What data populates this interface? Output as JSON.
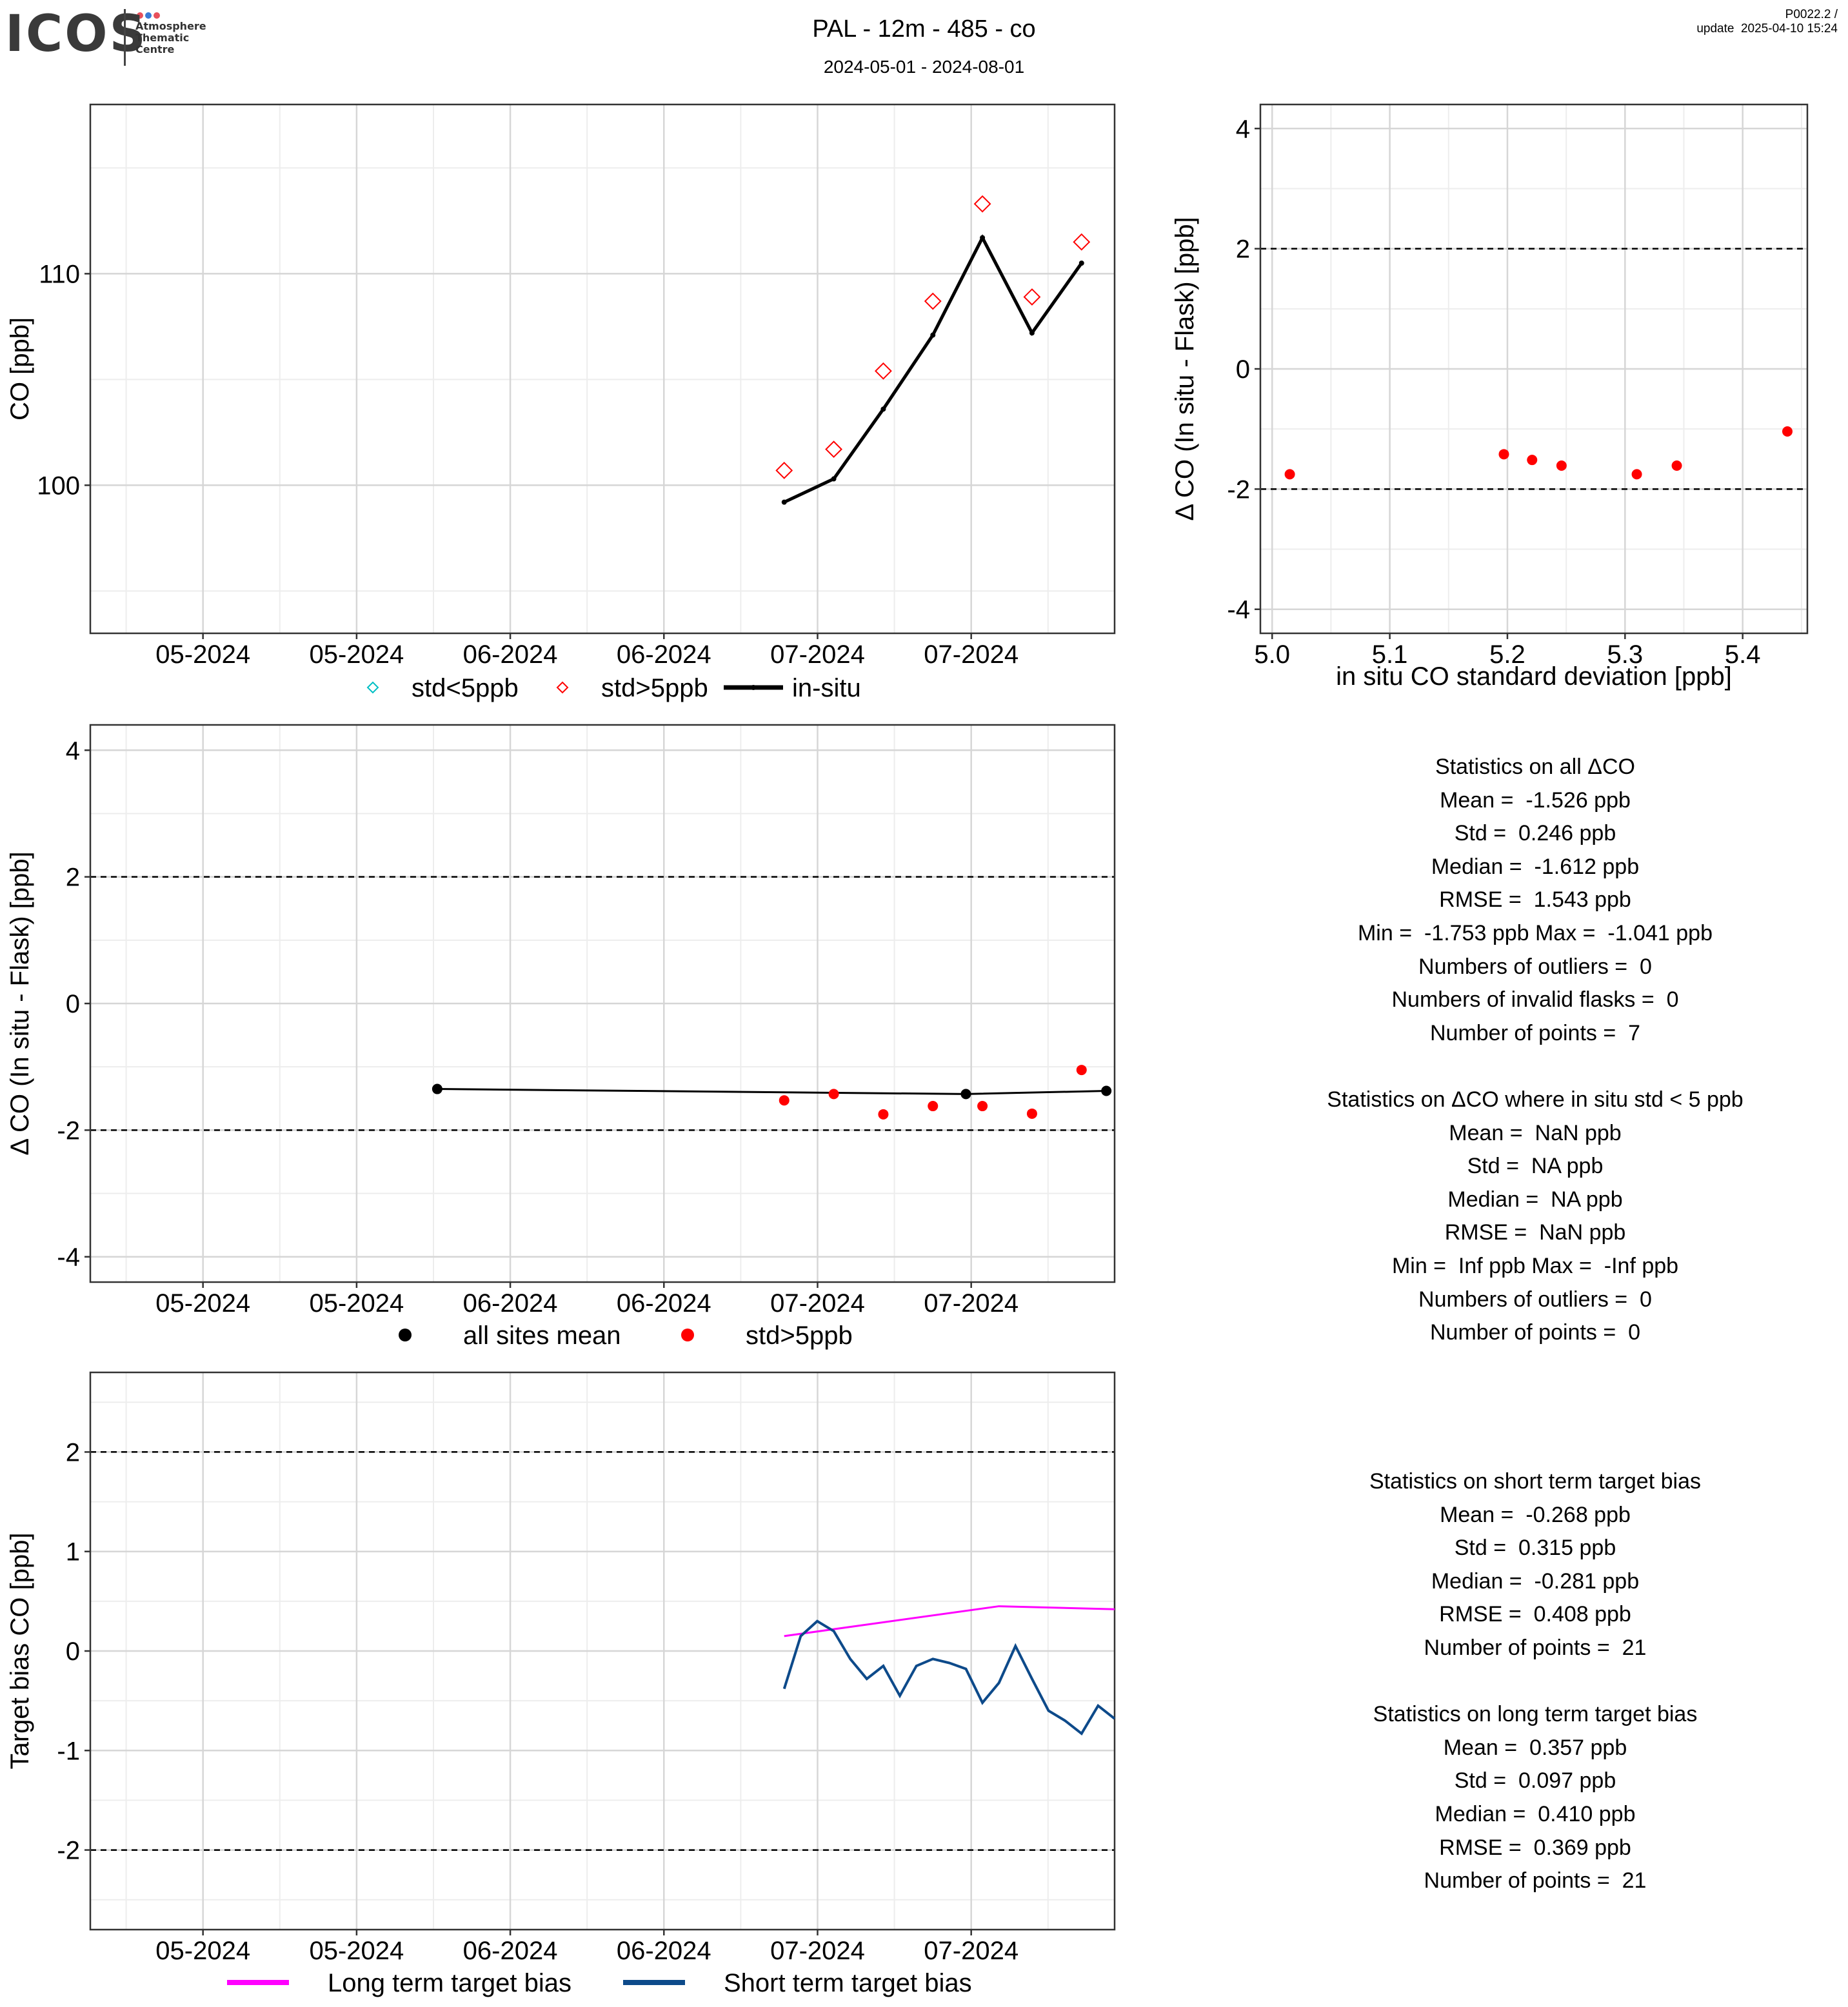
{
  "header": {
    "logo_text": "ICOS",
    "logo_subtitle": [
      "Atmosphere",
      "Thematic",
      "Centre"
    ],
    "title": "PAL - 12m - 485 - co",
    "subtitle": "2024-05-01 - 2024-08-01",
    "version_line1": "P0022.2 /",
    "version_line2": "update  2025-04-10 15:24"
  },
  "colors": {
    "insitu": "#000000",
    "std_low": "#00bfc4",
    "std_high": "#ff0000",
    "long_term": "#ff00ff",
    "short_term": "#0d4a8a",
    "logo_dot1": "#e8505b",
    "logo_dot2": "#3a7bd5",
    "logo_dot3": "#e8505b"
  },
  "chart_data": [
    {
      "type": "line",
      "ylabel": "CO [ppb]",
      "x_ticks": [
        "05-2024",
        "05-2024",
        "06-2024",
        "06-2024",
        "07-2024",
        "07-2024"
      ],
      "ylim": [
        93,
        118
      ],
      "y_ticks": [
        100,
        110
      ],
      "legend": [
        "std<5ppb",
        "std>5ppb",
        "in-situ"
      ],
      "series": [
        {
          "name": "in-situ",
          "x": [
            "2024-07-03",
            "2024-07-09",
            "2024-07-15",
            "2024-07-21",
            "2024-07-27",
            "2024-08-02",
            "2024-08-08"
          ],
          "values": [
            99.2,
            100.3,
            103.6,
            107.1,
            111.7,
            107.2,
            110.5
          ]
        },
        {
          "name": "std>5ppb",
          "x": [
            "2024-07-03",
            "2024-07-09",
            "2024-07-15",
            "2024-07-21",
            "2024-07-27",
            "2024-08-02",
            "2024-08-08"
          ],
          "values": [
            100.7,
            101.7,
            105.4,
            108.7,
            113.3,
            108.9,
            111.5
          ]
        }
      ]
    },
    {
      "type": "scatter",
      "xlabel": "in situ CO standard deviation [ppb]",
      "ylabel": "Δ CO (In situ - Flask) [ppb]",
      "xlim": [
        4.99,
        5.455
      ],
      "x_ticks": [
        "5.0",
        "5.1",
        "5.2",
        "5.3",
        "5.4"
      ],
      "ylim": [
        -4.4,
        4.4
      ],
      "y_ticks": [
        -4,
        -2,
        0,
        2,
        4
      ],
      "ref_lines": [
        2,
        -2
      ],
      "series": [
        {
          "name": "std>5ppb",
          "x": [
            5.015,
            5.197,
            5.221,
            5.246,
            5.31,
            5.344,
            5.438
          ],
          "values": [
            -1.753,
            -1.42,
            -1.515,
            -1.61,
            -1.753,
            -1.61,
            -1.041
          ]
        }
      ]
    },
    {
      "type": "scatter",
      "ylabel": "Δ CO (In situ - Flask) [ppb]",
      "x_ticks": [
        "05-2024",
        "05-2024",
        "06-2024",
        "06-2024",
        "07-2024",
        "07-2024"
      ],
      "ylim": [
        -4.4,
        4.4
      ],
      "y_ticks": [
        -4,
        -2,
        0,
        2,
        4
      ],
      "ref_lines": [
        2,
        -2
      ],
      "legend": [
        "all sites mean",
        "std>5ppb"
      ],
      "series": [
        {
          "name": "all sites mean",
          "x": [
            "2024-05-22",
            "2024-07-25",
            "2024-08-11"
          ],
          "values": [
            -1.35,
            -1.43,
            -1.38
          ]
        },
        {
          "name": "std>5ppb",
          "x": [
            "2024-07-03",
            "2024-07-09",
            "2024-07-15",
            "2024-07-21",
            "2024-07-27",
            "2024-08-02",
            "2024-08-08"
          ],
          "values": [
            -1.53,
            -1.43,
            -1.75,
            -1.62,
            -1.62,
            -1.74,
            -1.05
          ]
        }
      ]
    },
    {
      "type": "line",
      "ylabel": "Target bias CO [ppb]",
      "x_ticks": [
        "05-2024",
        "05-2024",
        "06-2024",
        "06-2024",
        "07-2024",
        "07-2024"
      ],
      "ylim": [
        -2.8,
        2.8
      ],
      "y_ticks": [
        -2,
        -1,
        0,
        1,
        2
      ],
      "ref_lines": [
        2,
        -2
      ],
      "legend": [
        "Long term target bias",
        "Short term target bias"
      ],
      "series": [
        {
          "name": "Long term target bias",
          "x": [
            "2024-07-03",
            "2024-07-29",
            "2024-08-12"
          ],
          "values": [
            0.15,
            0.45,
            0.42
          ]
        },
        {
          "name": "Short term target bias",
          "x": [
            "2024-07-03",
            "2024-07-05",
            "2024-07-07",
            "2024-07-09",
            "2024-07-11",
            "2024-07-13",
            "2024-07-15",
            "2024-07-17",
            "2024-07-19",
            "2024-07-21",
            "2024-07-23",
            "2024-07-25",
            "2024-07-27",
            "2024-07-29",
            "2024-07-31",
            "2024-08-02",
            "2024-08-04",
            "2024-08-06",
            "2024-08-08",
            "2024-08-10",
            "2024-08-12"
          ],
          "values": [
            -0.38,
            0.15,
            0.3,
            0.2,
            -0.08,
            -0.28,
            -0.15,
            -0.45,
            -0.15,
            -0.08,
            -0.12,
            -0.18,
            -0.52,
            -0.32,
            0.05,
            -0.28,
            -0.6,
            -0.7,
            -0.83,
            -0.55,
            -0.68
          ]
        }
      ]
    }
  ],
  "stats_all": [
    "Statistics on all ΔCO",
    "Mean =  -1.526 ppb",
    "Std =  0.246 ppb",
    "Median =  -1.612 ppb",
    "RMSE =  1.543 ppb",
    "Min =  -1.753 ppb Max =  -1.041 ppb",
    "Numbers of outliers =  0",
    "Numbers of invalid flasks =  0",
    "Number of points =  7",
    "",
    "Statistics on ΔCO where in situ std < 5 ppb",
    "Mean =  NaN ppb",
    "Std =  NA ppb",
    "Median =  NA ppb",
    "RMSE =  NaN ppb",
    "Min =  Inf ppb Max =  -Inf ppb",
    "Numbers of outliers =  0",
    "Number of points =  0"
  ],
  "stats_bias": [
    "Statistics on short term target bias",
    "Mean =  -0.268 ppb",
    "Std =  0.315 ppb",
    "Median =  -0.281 ppb",
    "RMSE =  0.408 ppb",
    "Number of points =  21",
    "",
    "Statistics on long term target bias",
    "Mean =  0.357 ppb",
    "Std =  0.097 ppb",
    "Median =  0.410 ppb",
    "RMSE =  0.369 ppb",
    "Number of points =  21"
  ]
}
